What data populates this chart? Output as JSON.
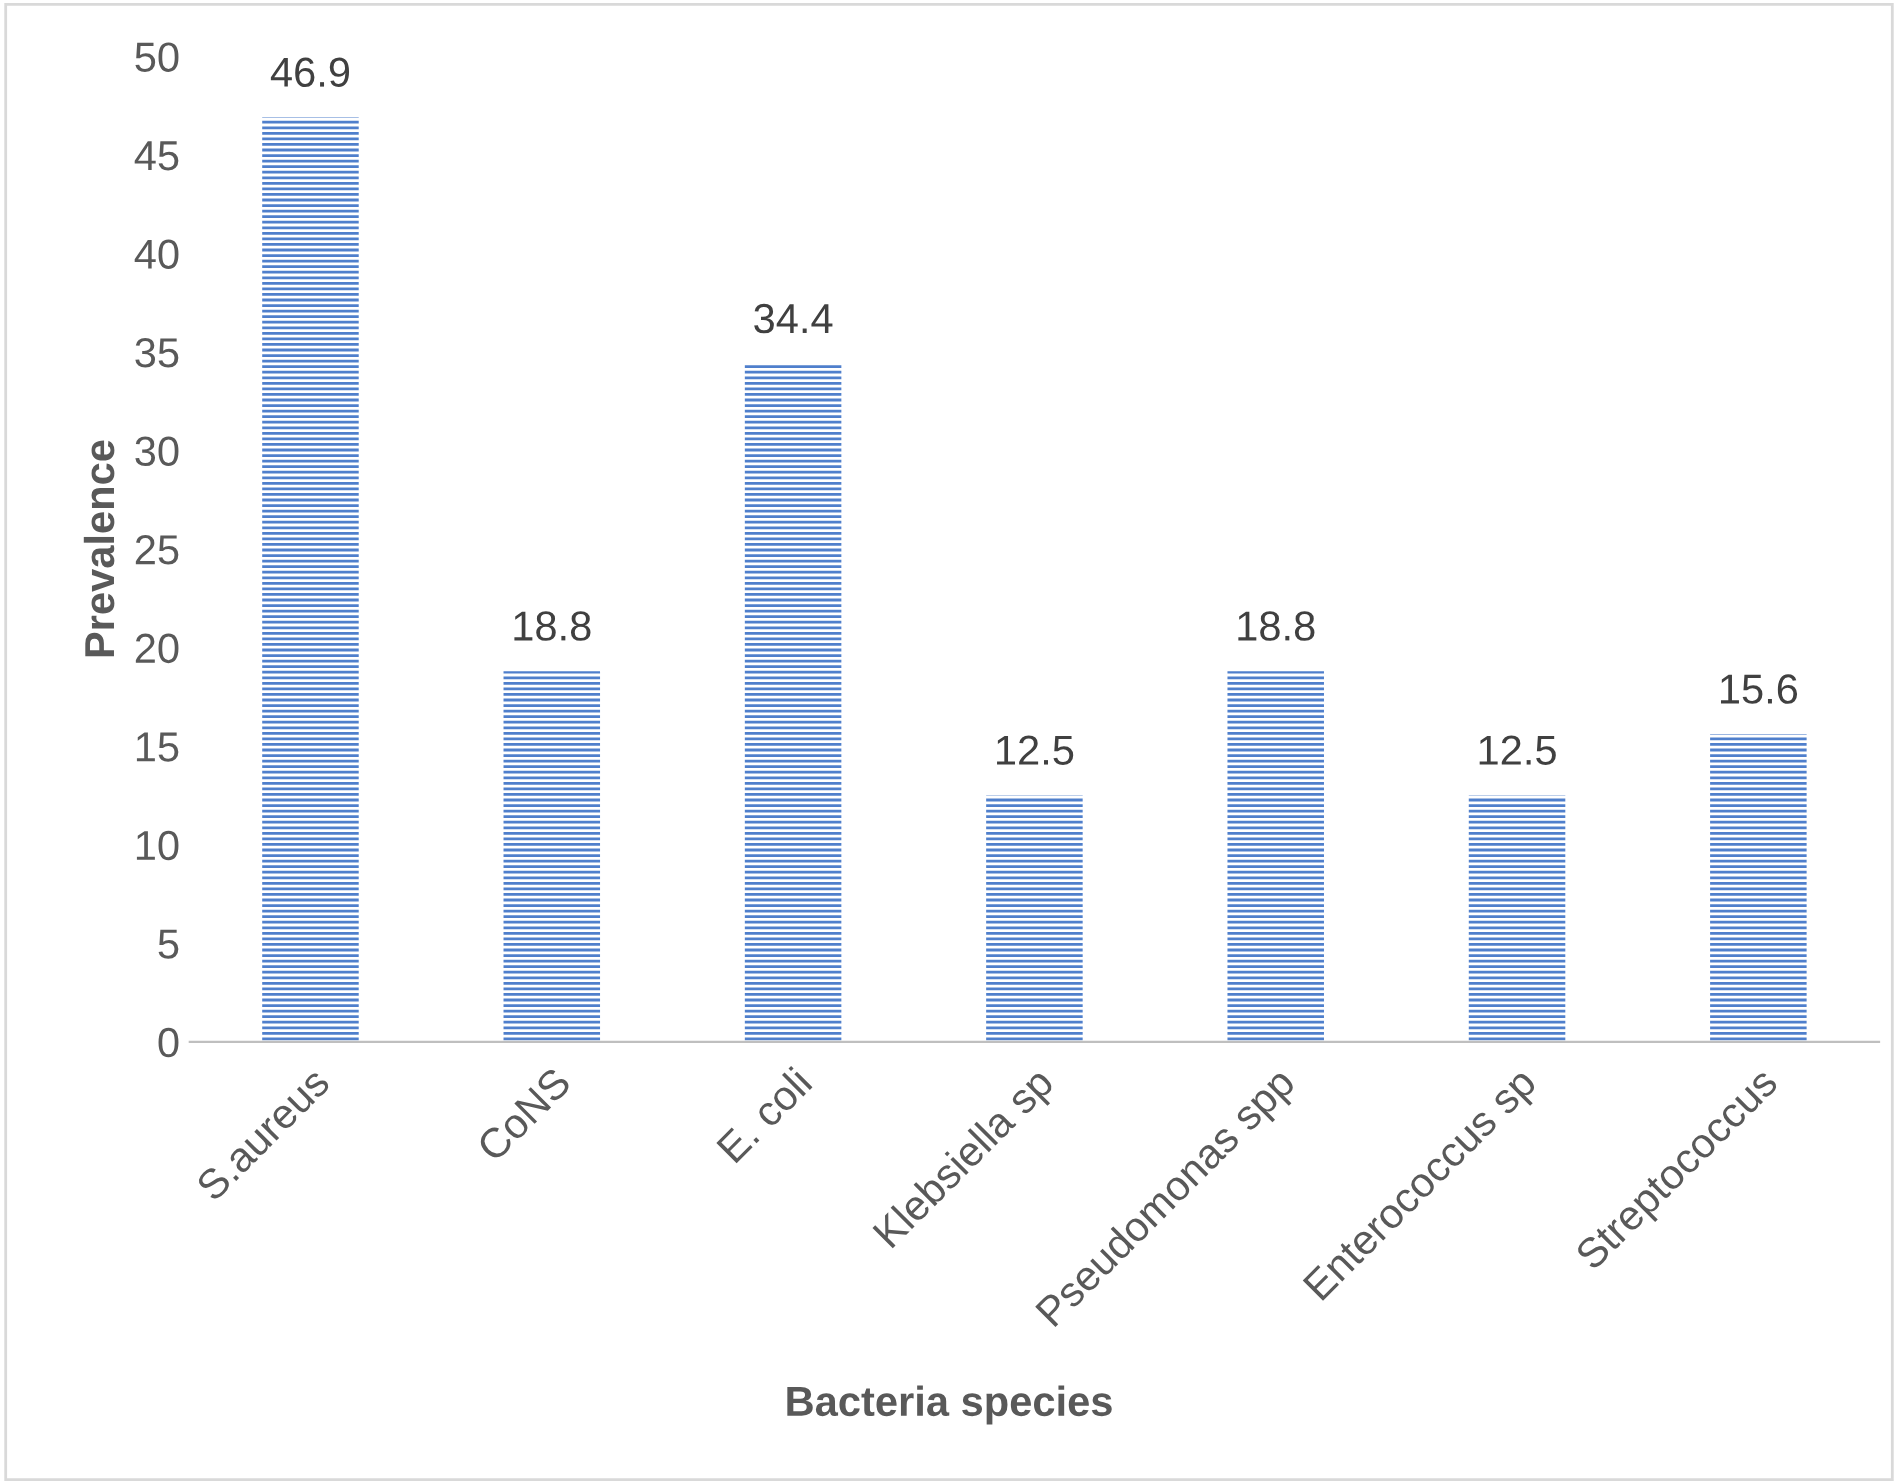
{
  "chart_data": {
    "type": "bar",
    "xlabel": "Bacteria species",
    "ylabel": "Prevalence",
    "categories": [
      "S.aureus",
      "CoNS",
      "E. coli",
      "Klebsiella sp",
      "Pseudomonas spp",
      "Enterococcus sp",
      "Streptococcus"
    ],
    "values": [
      46.9,
      18.8,
      34.4,
      12.5,
      18.8,
      12.5,
      15.6
    ],
    "color": "#4f7fcc",
    "ylim": [
      0,
      50
    ],
    "yticks": [
      0,
      5,
      10,
      15,
      20,
      25,
      30,
      35,
      40,
      45,
      50
    ],
    "grid": false,
    "data_labels": true
  }
}
